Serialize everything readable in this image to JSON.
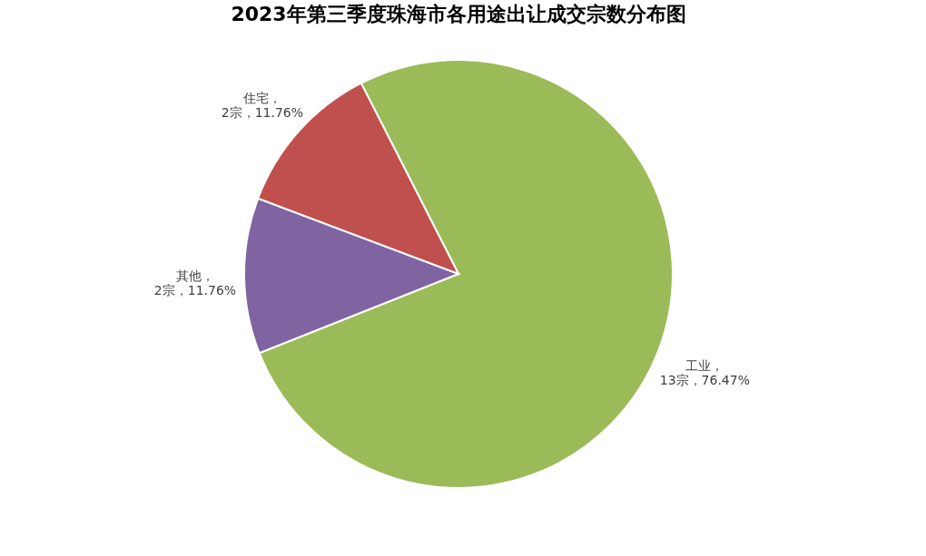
{
  "chart_data": {
    "type": "pie",
    "title": "2023年第三季度珠海市各用途出让成交宗数分布图",
    "categories": [
      "工业",
      "其他",
      "住宅"
    ],
    "values": [
      13,
      2,
      2
    ],
    "value_labels": [
      "，\n13宗，76.47%",
      "，\n2宗，11.76%",
      "，\n2宗，11.76%"
    ],
    "colors": [
      "#9bbb59",
      "#8064a2",
      "#c0504d"
    ],
    "legend": false
  }
}
